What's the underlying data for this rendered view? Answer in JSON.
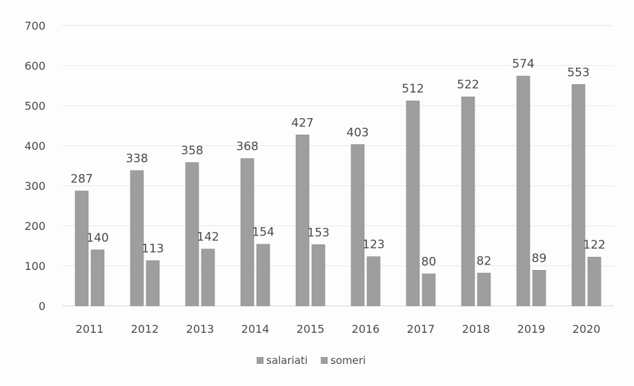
{
  "chart_data": {
    "type": "bar",
    "categories": [
      "2011",
      "2012",
      "2013",
      "2014",
      "2015",
      "2016",
      "2017",
      "2018",
      "2019",
      "2020"
    ],
    "series": [
      {
        "name": "salariati",
        "values": [
          287,
          338,
          358,
          368,
          427,
          403,
          512,
          522,
          574,
          553
        ]
      },
      {
        "name": "someri",
        "values": [
          140,
          113,
          142,
          154,
          153,
          123,
          80,
          82,
          89,
          122
        ]
      }
    ],
    "ylim": [
      0,
      700
    ],
    "yticks": [
      "0",
      "100",
      "200",
      "300",
      "400",
      "500",
      "600",
      "700"
    ],
    "grid": true,
    "legend": "bottom",
    "data_labels": true,
    "colors": {
      "bar": "#9e9e9e",
      "bar_edge": "#8a8a8a",
      "grid": "#e6e6e6",
      "text": "#4a4a4a"
    }
  }
}
